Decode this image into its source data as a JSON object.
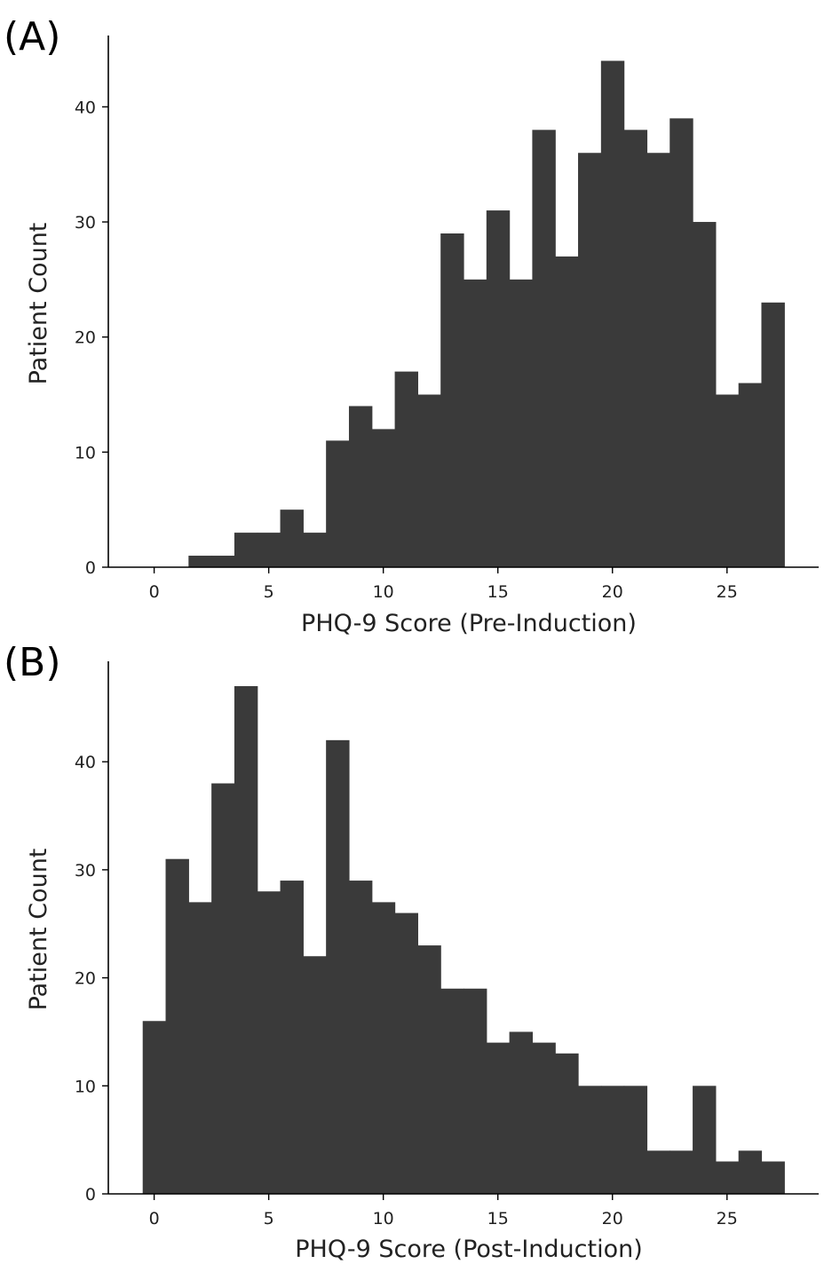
{
  "chart_data": [
    {
      "type": "bar",
      "panel": "(A)",
      "xlabel": "PHQ-9 Score (Pre-Induction)",
      "ylabel": "Patient Count",
      "x": [
        0,
        1,
        2,
        3,
        4,
        5,
        6,
        7,
        8,
        9,
        10,
        11,
        12,
        13,
        14,
        15,
        16,
        17,
        18,
        19,
        20,
        21,
        22,
        23,
        24,
        25,
        26,
        27
      ],
      "values": [
        0,
        0,
        1,
        1,
        3,
        3,
        5,
        3,
        11,
        14,
        12,
        17,
        15,
        29,
        25,
        31,
        25,
        38,
        27,
        36,
        44,
        38,
        36,
        39,
        30,
        15,
        16,
        23
      ],
      "xticks": [
        "0",
        "5",
        "10",
        "15",
        "20",
        "25"
      ],
      "yticks": [
        "0",
        "10",
        "20",
        "30",
        "40"
      ],
      "xlim": [
        -2,
        29
      ],
      "ylim": [
        0,
        46.2
      ],
      "grid": false
    },
    {
      "type": "bar",
      "panel": "(B)",
      "xlabel": "PHQ-9 Score (Post-Induction)",
      "ylabel": "Patient Count",
      "x": [
        0,
        1,
        2,
        3,
        4,
        5,
        6,
        7,
        8,
        9,
        10,
        11,
        12,
        13,
        14,
        15,
        16,
        17,
        18,
        19,
        20,
        21,
        22,
        23,
        24,
        25,
        26,
        27
      ],
      "values": [
        16,
        31,
        27,
        38,
        47,
        28,
        29,
        22,
        42,
        29,
        27,
        26,
        23,
        19,
        19,
        14,
        15,
        14,
        13,
        10,
        10,
        10,
        4,
        4,
        10,
        3,
        4,
        3
      ],
      "xticks": [
        "0",
        "5",
        "10",
        "15",
        "20",
        "25"
      ],
      "yticks": [
        "0",
        "10",
        "20",
        "30",
        "40"
      ],
      "xlim": [
        -2,
        29
      ],
      "ylim": [
        0,
        49.3
      ],
      "grid": false
    }
  ]
}
